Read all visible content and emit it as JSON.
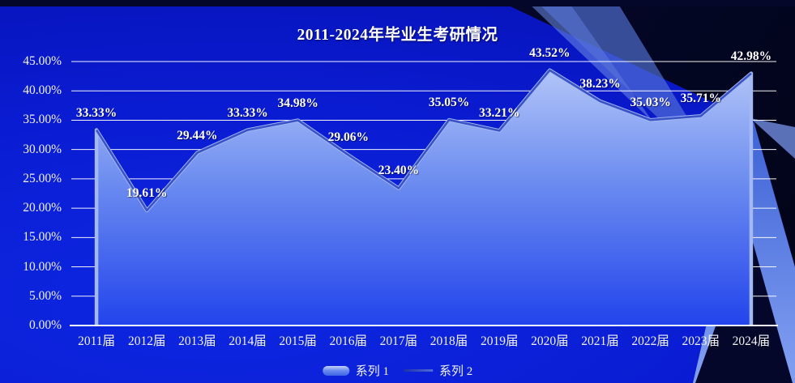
{
  "slide": {
    "title": "2011-2024年毕业生考研情况"
  },
  "chart_data": {
    "type": "area",
    "title": "2011-2024年毕业生考研情况",
    "categories": [
      "2011届",
      "2012届",
      "2013届",
      "2014届",
      "2015届",
      "2016届",
      "2017届",
      "2018届",
      "2019届",
      "2020届",
      "2021届",
      "2022届",
      "2023届",
      "2024届"
    ],
    "series": [
      {
        "name": "系列 1",
        "type": "area",
        "values": [
          33.33,
          19.61,
          29.44,
          33.33,
          34.98,
          29.06,
          23.4,
          35.05,
          33.21,
          43.52,
          38.23,
          35.03,
          35.71,
          42.98
        ]
      },
      {
        "name": "系列 2",
        "type": "line",
        "values": [
          33.33,
          19.61,
          29.44,
          33.33,
          34.98,
          29.06,
          23.4,
          35.05,
          33.21,
          43.52,
          38.23,
          35.03,
          35.71,
          42.98
        ]
      }
    ],
    "data_labels": [
      "33.33%",
      "19.61%",
      "29.44%",
      "33.33%",
      "34.98%",
      "29.06%",
      "23.40%",
      "35.05%",
      "33.21%",
      "43.52%",
      "38.23%",
      "35.03%",
      "35.71%",
      "42.98%"
    ],
    "ylim": [
      0,
      45
    ],
    "ytick_step": 5,
    "ytick_labels": [
      "0.00%",
      "5.00%",
      "10.00%",
      "15.00%",
      "20.00%",
      "25.00%",
      "30.00%",
      "35.00%",
      "40.00%",
      "45.00%"
    ],
    "grid": true,
    "legend_position": "bottom",
    "xlabel": "",
    "ylabel": ""
  },
  "colors": {
    "background_blue": "#0a1cd2",
    "background_blue_deep": "#0712b6",
    "dark_corner": "#04072a",
    "swoosh_blue": "#4a70dc",
    "area_fill_top": "#b7c9f8",
    "area_fill_mid": "#6d8df0",
    "area_fill_bottom": "#2244ec",
    "series_line": "#3a53c6",
    "series_line_highlight": "#a4b8f4",
    "gridline": "#ffffff",
    "axis_line": "#ffffff",
    "text": "#ffffff"
  }
}
